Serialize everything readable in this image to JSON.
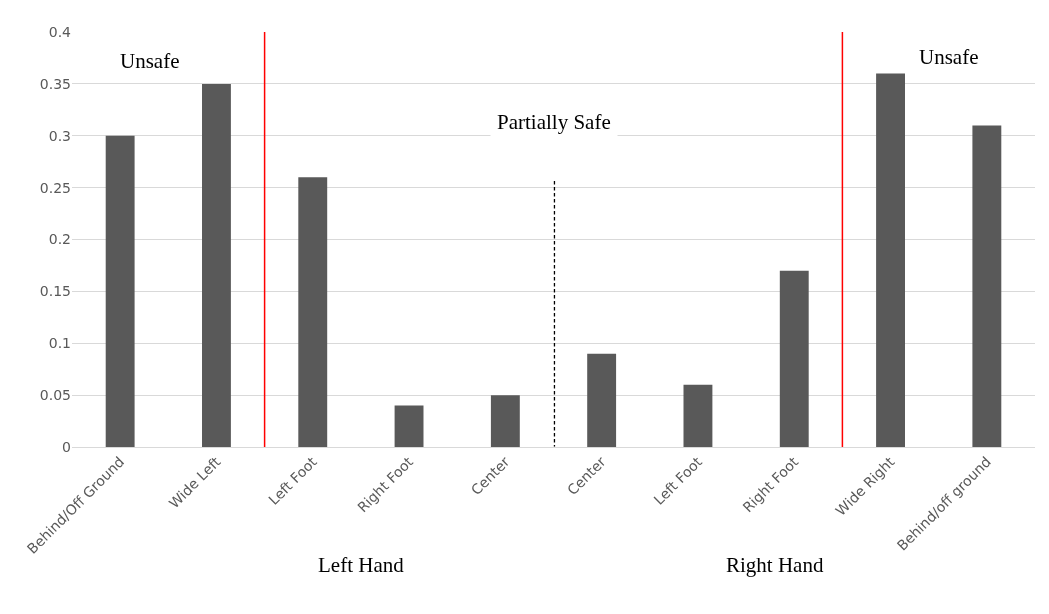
{
  "chart_data": {
    "type": "bar",
    "categories": [
      "Behind/Off Ground",
      "Wide Left",
      "Left Foot",
      "Right Foot",
      "Center",
      "Center",
      "Left Foot",
      "Right Foot",
      "Wide Right",
      "Behind/off ground"
    ],
    "values": [
      0.3,
      0.35,
      0.26,
      0.04,
      0.05,
      0.09,
      0.06,
      0.17,
      0.36,
      0.31
    ],
    "color": "#595959",
    "ylim": [
      0,
      0.4
    ],
    "yticks": [
      0,
      0.05,
      0.1,
      0.15,
      0.2,
      0.25,
      0.3,
      0.35,
      0.4
    ],
    "grid": "y",
    "annotations": [
      "Unsafe",
      "Partially Safe",
      "Unsafe",
      "Left Hand",
      "Right Hand"
    ]
  }
}
